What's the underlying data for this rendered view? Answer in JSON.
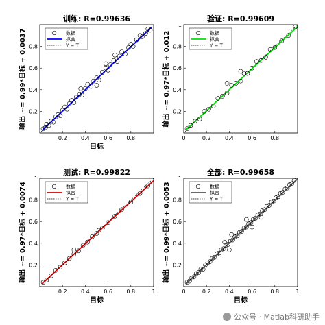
{
  "watermark": "公众号 · Matlab科研助手",
  "legend_labels": [
    "数据",
    "拟合",
    "Y = T"
  ],
  "chart_data": [
    {
      "type": "scatter",
      "title": "训练: R=0.99636",
      "xlabel": "目标",
      "ylabel": "输出 ~= 0.99*目标 + 0.0037",
      "xlim": [
        0,
        1
      ],
      "ylim": [
        0,
        1
      ],
      "xticks": [
        0.2,
        0.4,
        0.6,
        0.8
      ],
      "yticks": [
        0.2,
        0.4,
        0.6,
        0.8
      ],
      "fit": {
        "slope": 0.99,
        "intercept": 0.0037,
        "color": "#0000ff",
        "x_range": [
          0.02,
          0.98
        ]
      },
      "series": [
        {
          "values": [
            [
              0.03,
              0.04
            ],
            [
              0.05,
              0.05
            ],
            [
              0.06,
              0.08
            ],
            [
              0.08,
              0.07
            ],
            [
              0.1,
              0.11
            ],
            [
              0.12,
              0.1
            ],
            [
              0.14,
              0.15
            ],
            [
              0.16,
              0.17
            ],
            [
              0.18,
              0.16
            ],
            [
              0.2,
              0.21
            ],
            [
              0.22,
              0.24
            ],
            [
              0.24,
              0.22
            ],
            [
              0.26,
              0.27
            ],
            [
              0.28,
              0.3
            ],
            [
              0.3,
              0.28
            ],
            [
              0.32,
              0.33
            ],
            [
              0.35,
              0.36
            ],
            [
              0.37,
              0.35
            ],
            [
              0.4,
              0.41
            ],
            [
              0.42,
              0.45
            ],
            [
              0.45,
              0.43
            ],
            [
              0.47,
              0.48
            ],
            [
              0.5,
              0.51
            ],
            [
              0.52,
              0.49
            ],
            [
              0.55,
              0.56
            ],
            [
              0.58,
              0.6
            ],
            [
              0.6,
              0.58
            ],
            [
              0.62,
              0.63
            ],
            [
              0.65,
              0.67
            ],
            [
              0.68,
              0.66
            ],
            [
              0.7,
              0.71
            ],
            [
              0.72,
              0.75
            ],
            [
              0.75,
              0.73
            ],
            [
              0.78,
              0.79
            ],
            [
              0.8,
              0.82
            ],
            [
              0.82,
              0.8
            ],
            [
              0.85,
              0.86
            ],
            [
              0.88,
              0.9
            ],
            [
              0.9,
              0.89
            ],
            [
              0.93,
              0.92
            ],
            [
              0.95,
              0.96
            ],
            [
              0.97,
              0.95
            ],
            [
              0.66,
              0.72
            ],
            [
              0.5,
              0.44
            ],
            [
              0.58,
              0.64
            ],
            [
              0.36,
              0.41
            ]
          ]
        }
      ]
    },
    {
      "type": "scatter",
      "title": "验证: R=0.99609",
      "xlabel": "",
      "ylabel": "输出 ~= 0.97*目标 + 0.012",
      "xlim": [
        0,
        1
      ],
      "ylim": [
        0,
        1
      ],
      "xticks": [
        0,
        0.2,
        0.4,
        0.6,
        0.8
      ],
      "yticks": [
        0.2,
        0.4,
        0.6,
        0.8,
        1
      ],
      "fit": {
        "slope": 0.97,
        "intercept": 0.012,
        "color": "#00e000",
        "x_range": [
          0.02,
          1.0
        ]
      },
      "series": [
        {
          "values": [
            [
              0.03,
              0.04
            ],
            [
              0.06,
              0.07
            ],
            [
              0.1,
              0.11
            ],
            [
              0.14,
              0.13
            ],
            [
              0.18,
              0.2
            ],
            [
              0.22,
              0.22
            ],
            [
              0.26,
              0.25
            ],
            [
              0.3,
              0.32
            ],
            [
              0.34,
              0.34
            ],
            [
              0.38,
              0.37
            ],
            [
              0.42,
              0.44
            ],
            [
              0.46,
              0.46
            ],
            [
              0.5,
              0.48
            ],
            [
              0.53,
              0.55
            ],
            [
              0.56,
              0.55
            ],
            [
              0.6,
              0.6
            ],
            [
              0.64,
              0.66
            ],
            [
              0.68,
              0.67
            ],
            [
              0.72,
              0.7
            ],
            [
              0.76,
              0.77
            ],
            [
              0.8,
              0.79
            ],
            [
              0.86,
              0.85
            ],
            [
              0.92,
              0.9
            ],
            [
              0.98,
              0.98
            ],
            [
              0.5,
              0.57
            ],
            [
              0.38,
              0.46
            ]
          ]
        }
      ]
    },
    {
      "type": "scatter",
      "title": "测试: R=0.99822",
      "xlabel": "目标",
      "ylabel": "输出 ~= 0.97*目标 + 0.0074",
      "xlim": [
        0,
        1
      ],
      "ylim": [
        0,
        1
      ],
      "xticks": [
        0.2,
        0.4,
        0.6,
        0.8,
        1
      ],
      "yticks": [
        0.2,
        0.4,
        0.6,
        0.8,
        1
      ],
      "fit": {
        "slope": 0.97,
        "intercept": 0.0074,
        "color": "#d00000",
        "x_range": [
          0.02,
          1.0
        ]
      },
      "series": [
        {
          "values": [
            [
              0.03,
              0.04
            ],
            [
              0.06,
              0.06
            ],
            [
              0.1,
              0.1
            ],
            [
              0.14,
              0.15
            ],
            [
              0.18,
              0.18
            ],
            [
              0.22,
              0.22
            ],
            [
              0.26,
              0.26
            ],
            [
              0.3,
              0.3
            ],
            [
              0.34,
              0.33
            ],
            [
              0.38,
              0.38
            ],
            [
              0.42,
              0.41
            ],
            [
              0.46,
              0.46
            ],
            [
              0.5,
              0.49
            ],
            [
              0.55,
              0.54
            ],
            [
              0.6,
              0.59
            ],
            [
              0.66,
              0.65
            ],
            [
              0.72,
              0.71
            ],
            [
              0.8,
              0.78
            ],
            [
              0.88,
              0.86
            ],
            [
              0.95,
              0.93
            ],
            [
              0.3,
              0.34
            ],
            [
              0.52,
              0.52
            ]
          ]
        }
      ]
    },
    {
      "type": "scatter",
      "title": "全部: R=0.99658",
      "xlabel": "目标",
      "ylabel": "输出 ~= 0.99*目标 + 0.0053",
      "xlim": [
        0,
        1
      ],
      "ylim": [
        0,
        1
      ],
      "xticks": [
        0,
        0.2,
        0.4,
        0.6,
        0.8,
        1
      ],
      "yticks": [
        0.2,
        0.4,
        0.6,
        0.8,
        1
      ],
      "fit": {
        "slope": 0.99,
        "intercept": 0.0053,
        "color": "#555555",
        "x_range": [
          0.02,
          1.0
        ]
      },
      "series": [
        {
          "values": [
            [
              0.03,
              0.04
            ],
            [
              0.05,
              0.05
            ],
            [
              0.07,
              0.08
            ],
            [
              0.09,
              0.09
            ],
            [
              0.11,
              0.12
            ],
            [
              0.13,
              0.13
            ],
            [
              0.15,
              0.16
            ],
            [
              0.17,
              0.16
            ],
            [
              0.19,
              0.2
            ],
            [
              0.21,
              0.22
            ],
            [
              0.23,
              0.23
            ],
            [
              0.25,
              0.26
            ],
            [
              0.27,
              0.27
            ],
            [
              0.29,
              0.3
            ],
            [
              0.31,
              0.31
            ],
            [
              0.33,
              0.34
            ],
            [
              0.35,
              0.35
            ],
            [
              0.37,
              0.38
            ],
            [
              0.39,
              0.39
            ],
            [
              0.41,
              0.42
            ],
            [
              0.43,
              0.43
            ],
            [
              0.45,
              0.46
            ],
            [
              0.47,
              0.47
            ],
            [
              0.49,
              0.5
            ],
            [
              0.51,
              0.51
            ],
            [
              0.53,
              0.54
            ],
            [
              0.55,
              0.55
            ],
            [
              0.57,
              0.58
            ],
            [
              0.59,
              0.59
            ],
            [
              0.61,
              0.62
            ],
            [
              0.63,
              0.63
            ],
            [
              0.65,
              0.66
            ],
            [
              0.67,
              0.67
            ],
            [
              0.69,
              0.7
            ],
            [
              0.71,
              0.71
            ],
            [
              0.73,
              0.74
            ],
            [
              0.75,
              0.75
            ],
            [
              0.77,
              0.78
            ],
            [
              0.79,
              0.79
            ],
            [
              0.81,
              0.82
            ],
            [
              0.83,
              0.83
            ],
            [
              0.85,
              0.86
            ],
            [
              0.87,
              0.87
            ],
            [
              0.89,
              0.9
            ],
            [
              0.91,
              0.91
            ],
            [
              0.93,
              0.94
            ],
            [
              0.95,
              0.95
            ],
            [
              0.97,
              0.98
            ],
            [
              0.4,
              0.34
            ],
            [
              0.42,
              0.48
            ],
            [
              0.55,
              0.62
            ],
            [
              0.68,
              0.64
            ],
            [
              0.6,
              0.55
            ],
            [
              0.36,
              0.41
            ]
          ]
        }
      ]
    }
  ]
}
